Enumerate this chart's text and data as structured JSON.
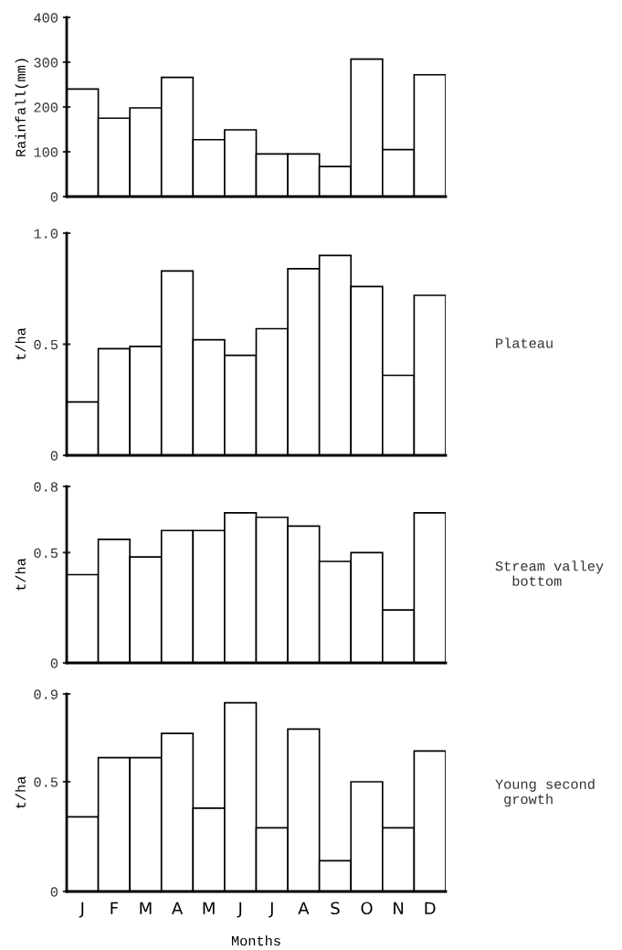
{
  "chart_data": [
    {
      "type": "bar",
      "ylabel": "Rainfall(mm)",
      "categories": [
        null,
        null,
        null,
        null,
        null,
        null,
        null,
        null,
        null,
        null,
        null,
        null
      ],
      "values": [
        240,
        175,
        198,
        266,
        127,
        149,
        95,
        95,
        67,
        307,
        105,
        272
      ],
      "color": "#ffffff",
      "ylim": [
        0,
        400
      ],
      "yticks": [
        0,
        100,
        200,
        300,
        400
      ],
      "tick_labels": "y"
    },
    {
      "type": "bar",
      "ylabel": "t/ha",
      "annotations": [
        "Plateau"
      ],
      "categories": [
        null,
        null,
        null,
        null,
        null,
        null,
        null,
        null,
        null,
        null,
        null,
        null
      ],
      "values": [
        0.24,
        0.48,
        0.49,
        0.83,
        0.52,
        0.45,
        0.57,
        0.84,
        0.9,
        0.76,
        0.36,
        0.72
      ],
      "color": "#ffffff",
      "ylim": [
        0,
        1.0
      ],
      "yticks": [
        0,
        {
          "value": 0.5,
          "label": "0.5"
        },
        {
          "value": 1.0,
          "label": "1.0"
        }
      ],
      "tick_labels": "y"
    },
    {
      "type": "bar",
      "ylabel": "t/ha",
      "annotations": [
        "Stream valley\n  bottom"
      ],
      "categories": [
        null,
        null,
        null,
        null,
        null,
        null,
        null,
        null,
        null,
        null,
        null,
        null
      ],
      "values": [
        0.4,
        0.56,
        0.48,
        0.6,
        0.6,
        0.68,
        0.66,
        0.62,
        0.46,
        0.5,
        0.24,
        0.68
      ],
      "color": "#ffffff",
      "ylim": [
        0,
        0.8
      ],
      "yticks": [
        0,
        {
          "value": 0.5,
          "label": "0.5"
        },
        {
          "value": 0.8,
          "label": "0.8"
        }
      ],
      "tick_labels": "y"
    },
    {
      "type": "bar",
      "ylabel": "t/ha",
      "xlabel": "Months",
      "annotations": [
        "Young second\n growth"
      ],
      "categories": [
        "J",
        "F",
        "M",
        "A",
        "M",
        "J",
        "J",
        "A",
        "S",
        "O",
        "N",
        "D"
      ],
      "values": [
        0.34,
        0.61,
        0.61,
        0.72,
        0.38,
        0.86,
        0.29,
        0.74,
        0.14,
        0.5,
        0.29,
        0.64
      ],
      "color": "#ffffff",
      "ylim": [
        0,
        0.9
      ],
      "yticks": [
        0,
        {
          "value": 0.5,
          "label": "0.5"
        },
        {
          "value": 0.9,
          "label": "0.9"
        }
      ]
    }
  ]
}
